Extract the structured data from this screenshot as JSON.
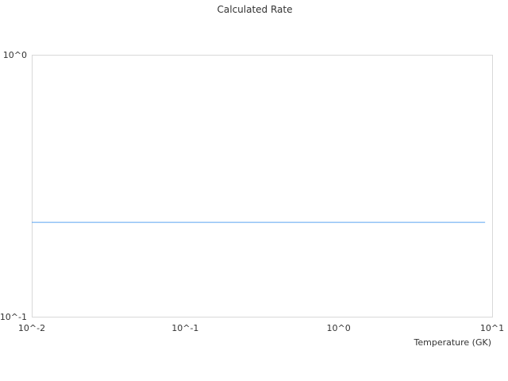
{
  "chart_data": {
    "type": "line",
    "title": "Calculated Rate",
    "xlabel": "Temperature (GK)",
    "ylabel": "",
    "x_scale": "log",
    "y_scale": "log",
    "xlim": [
      0.01,
      10
    ],
    "ylim": [
      0.1,
      1
    ],
    "x_ticks": [
      "10^-2",
      "10^-1",
      "10^0",
      "10^1"
    ],
    "y_ticks": [
      "10^-1",
      "10^0"
    ],
    "grid": false,
    "series": [
      {
        "color": "#5aa5f0",
        "x": [
          0.01,
          0.1,
          1,
          9
        ],
        "y": [
          0.23,
          0.23,
          0.23,
          0.23
        ]
      }
    ]
  }
}
